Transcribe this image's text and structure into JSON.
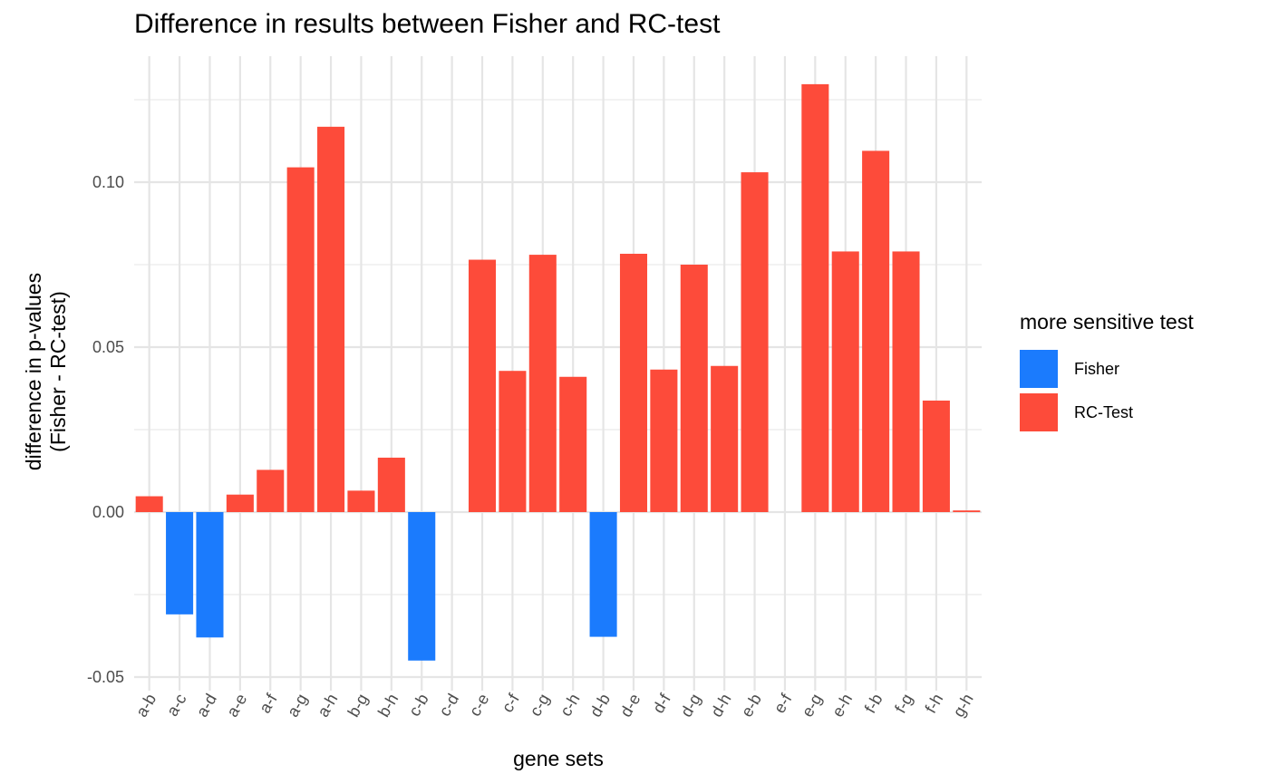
{
  "chart_data": {
    "type": "bar",
    "title": "Difference in results between Fisher and RC-test",
    "xlabel": "gene sets",
    "ylabel_lines": [
      "difference in p-values",
      "(Fisher - RC-test)"
    ],
    "ylim": [
      -0.05,
      0.14
    ],
    "yticks": [
      -0.05,
      0.0,
      0.05,
      0.1
    ],
    "ytick_labels": [
      "-0.05",
      "0.00",
      "0.05",
      "0.10"
    ],
    "grid": true,
    "legend": {
      "title": "more sensitive test",
      "position": "right",
      "entries": [
        {
          "label": "Fisher",
          "color": "#1b7bfd"
        },
        {
          "label": "RC-Test",
          "color": "#fd4b3a"
        }
      ]
    },
    "categories": [
      "a-b",
      "a-c",
      "a-d",
      "a-e",
      "a-f",
      "a-g",
      "a-h",
      "b-g",
      "b-h",
      "c-b",
      "c-d",
      "c-e",
      "c-f",
      "c-g",
      "c-h",
      "d-b",
      "d-e",
      "d-f",
      "d-g",
      "d-h",
      "e-b",
      "e-f",
      "e-g",
      "e-h",
      "f-b",
      "f-g",
      "f-h",
      "g-h"
    ],
    "values": [
      0.0048,
      -0.031,
      -0.038,
      0.0053,
      0.0128,
      0.1045,
      0.1168,
      0.0065,
      0.0165,
      -0.045,
      0.0,
      0.0765,
      0.0428,
      0.078,
      0.041,
      -0.0378,
      0.0783,
      0.0432,
      0.075,
      0.0443,
      0.103,
      0.0,
      0.1297,
      0.079,
      0.1095,
      0.079,
      0.0338,
      0.0005
    ],
    "series_labels": [
      "RC-Test",
      "Fisher",
      "Fisher",
      "RC-Test",
      "RC-Test",
      "RC-Test",
      "RC-Test",
      "RC-Test",
      "RC-Test",
      "Fisher",
      "RC-Test",
      "RC-Test",
      "RC-Test",
      "RC-Test",
      "RC-Test",
      "Fisher",
      "RC-Test",
      "RC-Test",
      "RC-Test",
      "RC-Test",
      "RC-Test",
      "RC-Test",
      "RC-Test",
      "RC-Test",
      "RC-Test",
      "RC-Test",
      "RC-Test",
      "RC-Test"
    ]
  }
}
